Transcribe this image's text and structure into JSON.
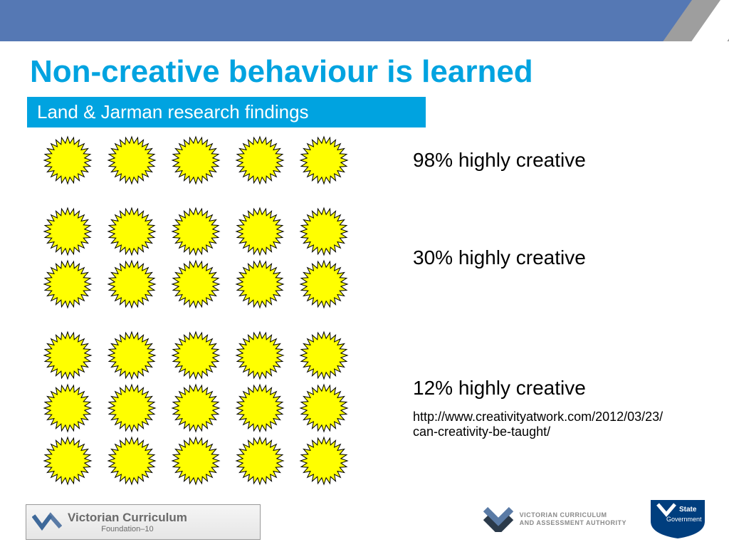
{
  "slide": {
    "title": "Non-creative behaviour is learned",
    "subtitle": "Land & Jarman research findings",
    "title_color": "#00a3e0",
    "subtitle_bg": "#00a3e0",
    "subtitle_color": "#ffffff",
    "top_bar_color": "#5578b4",
    "grey_stripe_color": "#9e9e9e"
  },
  "rows": [
    {
      "burst_rows": 1,
      "bursts_per_row": 5,
      "label": "98% highly creative"
    },
    {
      "burst_rows": 2,
      "bursts_per_row": 5,
      "label": "30% highly creative"
    },
    {
      "burst_rows": 3,
      "bursts_per_row": 5,
      "label": "12% highly creative",
      "url": "http://www.creativityatwork.com/2012/03/23/can-creativity-be-taught/"
    }
  ],
  "burst": {
    "fill_color": "#ffff00",
    "stroke_color": "#000000",
    "points": 24,
    "outer_radius": 33,
    "inner_radius": 24,
    "size": 70
  },
  "label_style": {
    "fontsize": 28,
    "color": "#000000"
  },
  "url_style": {
    "fontsize": 18,
    "color": "#000000"
  },
  "footer": {
    "left": {
      "line1": "Victorian Curriculum",
      "line2": "Foundation–10"
    },
    "vcaa": {
      "line1": "VICTORIAN CURRICULUM",
      "line2": "AND ASSESSMENT AUTHORITY"
    },
    "vic": {
      "line1": "State",
      "line2": "Government"
    },
    "shield_color": "#003e7e",
    "chev_blue": "#5a7ba6",
    "chev_dark": "#2b3a4a"
  }
}
